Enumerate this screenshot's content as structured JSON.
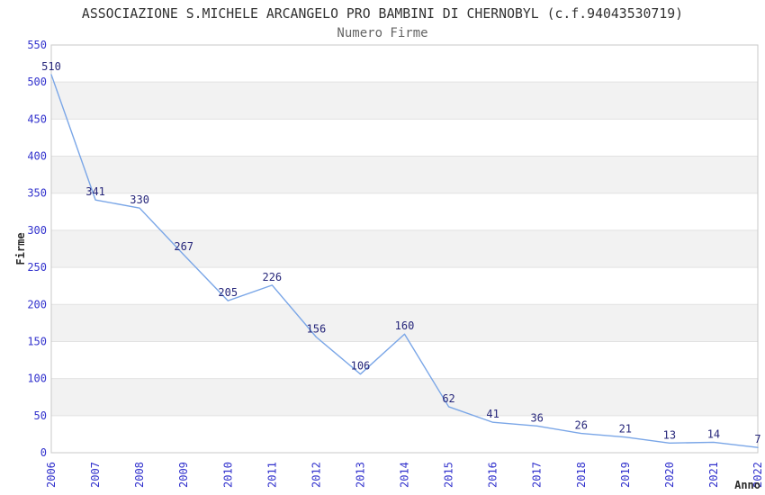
{
  "chart_data": {
    "type": "line",
    "title": "ASSOCIAZIONE S.MICHELE ARCANGELO PRO BAMBINI DI CHERNOBYL (c.f.94043530719)",
    "subtitle": "Numero Firme",
    "xlabel": "Anno",
    "ylabel": "Firme",
    "categories": [
      "2006",
      "2007",
      "2008",
      "2009",
      "2010",
      "2011",
      "2012",
      "2013",
      "2014",
      "2015",
      "2016",
      "2017",
      "2018",
      "2019",
      "2020",
      "2021",
      "2022"
    ],
    "values": [
      510,
      341,
      330,
      267,
      205,
      226,
      156,
      106,
      160,
      62,
      41,
      36,
      26,
      21,
      13,
      14,
      7
    ],
    "ylim": [
      0,
      550
    ],
    "ytick_step": 50,
    "grid": true,
    "banded_background": true,
    "legend": "none",
    "colors": {
      "line": "#7aa6e7",
      "tick_label": "#3232cd",
      "data_label": "#26267a",
      "band_gray": "#f2f2f2",
      "band_white": "#ffffff",
      "gridline": "#e2e2e2",
      "plot_border": "#c8c8c8",
      "title": "#323232",
      "subtitle": "#646464",
      "axis_title": "#2b2b2b"
    }
  }
}
